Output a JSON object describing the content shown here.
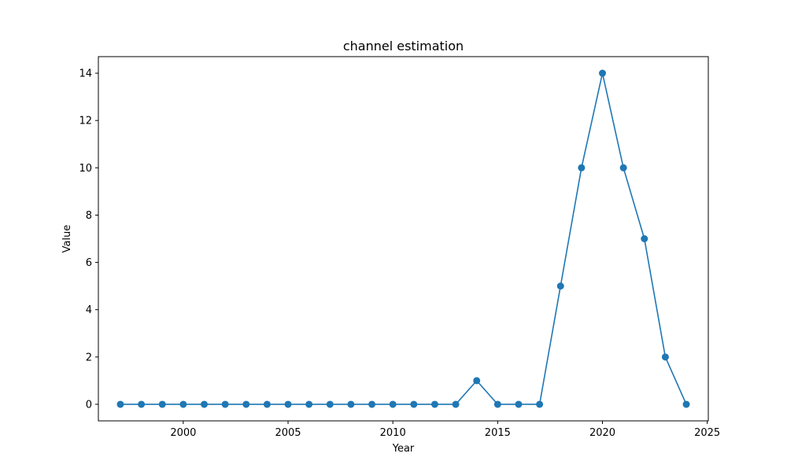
{
  "chart_data": {
    "type": "line",
    "title": "channel estimation",
    "xlabel": "Year",
    "ylabel": "Value",
    "xlim": [
      1995.95,
      2025.05
    ],
    "ylim": [
      -0.7,
      14.7
    ],
    "xticks": [
      2000,
      2005,
      2010,
      2015,
      2020,
      2025
    ],
    "yticks": [
      0,
      2,
      4,
      6,
      8,
      10,
      12,
      14
    ],
    "grid": false,
    "series_color": "#1f77b4",
    "series": [
      {
        "x": [
          1997,
          1998,
          1999,
          2000,
          2001,
          2002,
          2003,
          2004,
          2005,
          2006,
          2007,
          2008,
          2009,
          2010,
          2011,
          2012,
          2013,
          2014,
          2015,
          2016,
          2017,
          2018,
          2019,
          2020,
          2021,
          2022,
          2023,
          2024
        ],
        "values": [
          0,
          0,
          0,
          0,
          0,
          0,
          0,
          0,
          0,
          0,
          0,
          0,
          0,
          0,
          0,
          0,
          0,
          1,
          0,
          0,
          0,
          5,
          10,
          14,
          10,
          7,
          2,
          0
        ]
      }
    ]
  }
}
